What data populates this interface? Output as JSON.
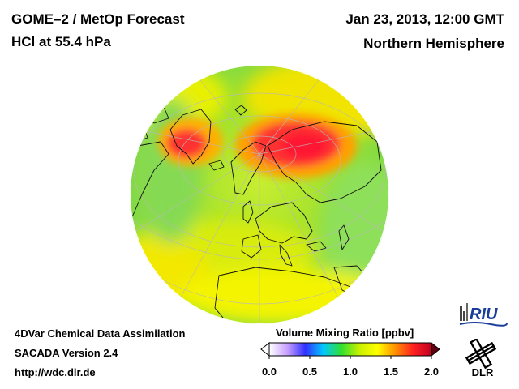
{
  "header": {
    "product": "GOME–2 / MetOp Forecast",
    "quantity": "HCl at 55.4 hPa",
    "datetime": "Jan 23, 2013, 12:00 GMT",
    "region": "Northern Hemisphere"
  },
  "footer": {
    "method": "4DVar Chemical Data Assimilation",
    "model": "SACADA Version 2.4",
    "url": "http://wdc.dlr.de"
  },
  "colorbar": {
    "title": "Volume Mixing Ratio [ppbv]",
    "ticks": [
      {
        "label": "0.0",
        "value": 0.0
      },
      {
        "label": "0.5",
        "value": 0.5
      },
      {
        "label": "1.0",
        "value": 1.0
      },
      {
        "label": "1.5",
        "value": 1.5
      },
      {
        "label": "2.0",
        "value": 2.0
      }
    ],
    "range": [
      0.0,
      2.0
    ],
    "colors": [
      "#ffffff",
      "#c8a0ff",
      "#3030ff",
      "#00c8ff",
      "#30e030",
      "#c8f000",
      "#ffff00",
      "#ff9000",
      "#ff2020",
      "#c00020"
    ]
  },
  "logos": {
    "riu": "RIU",
    "dlr": "DLR"
  },
  "map": {
    "projection": "orthographic",
    "ocean_base_color": "#9ee02c",
    "high_anomaly_color": "#ff3030"
  }
}
